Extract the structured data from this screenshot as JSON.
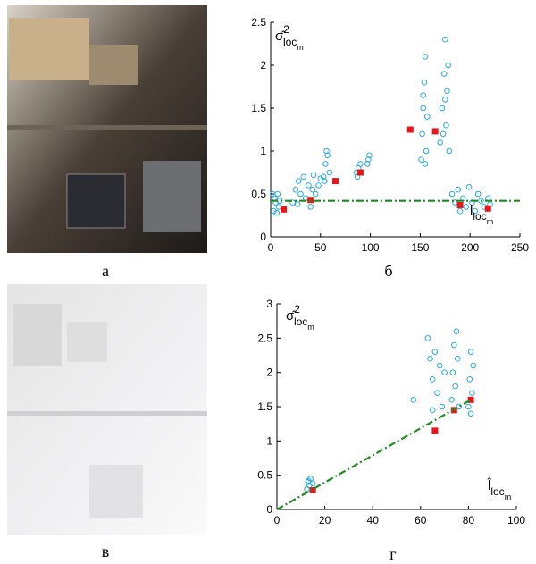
{
  "captions": [
    "а",
    "б",
    "в",
    "г"
  ],
  "chart_data": [
    {
      "type": "scatter",
      "ylabel": {
        "base": "σ̂",
        "sup": "2",
        "sub": "loc",
        "subsub": "m"
      },
      "xlabel": {
        "base": "l",
        "sub": "loc",
        "subsub": "m"
      },
      "xlim": [
        0,
        250
      ],
      "xticks": [
        0,
        50,
        100,
        150,
        200,
        250
      ],
      "ylim": [
        0,
        2.5
      ],
      "yticks": [
        0,
        0.5,
        1,
        1.5,
        2,
        2.5
      ],
      "series": [
        {
          "color": "#2aaae2",
          "marker": "circle",
          "x": [
            3,
            5,
            7,
            4,
            8,
            6,
            9,
            2,
            22,
            25,
            28,
            30,
            33,
            35,
            38,
            40,
            43,
            45,
            48,
            50,
            27,
            42,
            53,
            55,
            57,
            59,
            56,
            54,
            86,
            88,
            90,
            87,
            97,
            99,
            98,
            151,
            152,
            153,
            154,
            155,
            156,
            157,
            153,
            155,
            170,
            172,
            174,
            175,
            176,
            177,
            178,
            173,
            179,
            175,
            182,
            185,
            188,
            190,
            193,
            196,
            199,
            202,
            205,
            208,
            211,
            214,
            218,
            220
          ],
          "values": [
            0.3,
            0.4,
            0.5,
            0.45,
            0.35,
            0.28,
            0.42,
            0.5,
            0.4,
            0.55,
            0.65,
            0.5,
            0.7,
            0.45,
            0.6,
            0.35,
            0.72,
            0.5,
            0.6,
            0.68,
            0.38,
            0.55,
            0.7,
            0.85,
            0.95,
            0.75,
            1.0,
            0.65,
            0.75,
            0.8,
            0.85,
            0.7,
            0.85,
            0.95,
            0.9,
            0.9,
            1.2,
            1.5,
            1.8,
            2.1,
            1.0,
            1.4,
            1.65,
            0.85,
            1.1,
            1.5,
            1.9,
            2.3,
            1.3,
            1.7,
            2.0,
            1.2,
            1.0,
            1.6,
            0.5,
            0.4,
            0.55,
            0.3,
            0.45,
            0.35,
            0.58,
            0.4,
            0.3,
            0.5,
            0.42,
            0.35,
            0.45,
            0.38
          ]
        },
        {
          "color": "#e8161b",
          "marker": "square",
          "x": [
            13,
            40,
            65,
            90,
            140,
            165,
            190,
            218
          ],
          "values": [
            0.32,
            0.43,
            0.65,
            0.75,
            1.25,
            1.23,
            0.37,
            0.33
          ]
        },
        {
          "color": "#1f8a1f",
          "marker": "dashdot-line",
          "x": [
            0,
            250
          ],
          "values": [
            0.42,
            0.42
          ]
        }
      ]
    },
    {
      "type": "scatter",
      "ylabel": {
        "base": "σ̂",
        "sup": "2",
        "sub": "loc",
        "subsub": "m"
      },
      "xlabel": {
        "base": "l̂",
        "sub": "loc",
        "subsub": "m"
      },
      "xlim": [
        0,
        100
      ],
      "xticks": [
        0,
        20,
        40,
        60,
        80,
        100
      ],
      "ylim": [
        0,
        3
      ],
      "yticks": [
        0,
        0.5,
        1,
        1.5,
        2,
        2.5,
        3
      ],
      "series": [
        {
          "color": "#2aaae2",
          "marker": "circle",
          "x": [
            12.5,
            13,
            13.5,
            14,
            14.5,
            15,
            13.2,
            57,
            63,
            64,
            65,
            66,
            67,
            68,
            69,
            70,
            65,
            73,
            73.5,
            74,
            74.5,
            75,
            75.5,
            76,
            74,
            80,
            80.5,
            81,
            81.5,
            82,
            81
          ],
          "values": [
            0.3,
            0.4,
            0.35,
            0.45,
            0.28,
            0.38,
            0.42,
            1.6,
            2.5,
            2.2,
            1.9,
            2.3,
            1.7,
            2.1,
            1.5,
            2.0,
            1.45,
            1.6,
            2.0,
            2.4,
            1.8,
            2.6,
            2.2,
            1.5,
            1.45,
            1.5,
            1.9,
            2.3,
            1.7,
            2.1,
            1.4
          ]
        },
        {
          "color": "#e8161b",
          "marker": "square",
          "x": [
            15,
            66,
            74,
            81
          ],
          "values": [
            0.28,
            1.15,
            1.45,
            1.6
          ]
        },
        {
          "color": "#1f8a1f",
          "marker": "dashdot-line",
          "x": [
            0,
            81
          ],
          "values": [
            0,
            1.6
          ]
        }
      ]
    }
  ]
}
